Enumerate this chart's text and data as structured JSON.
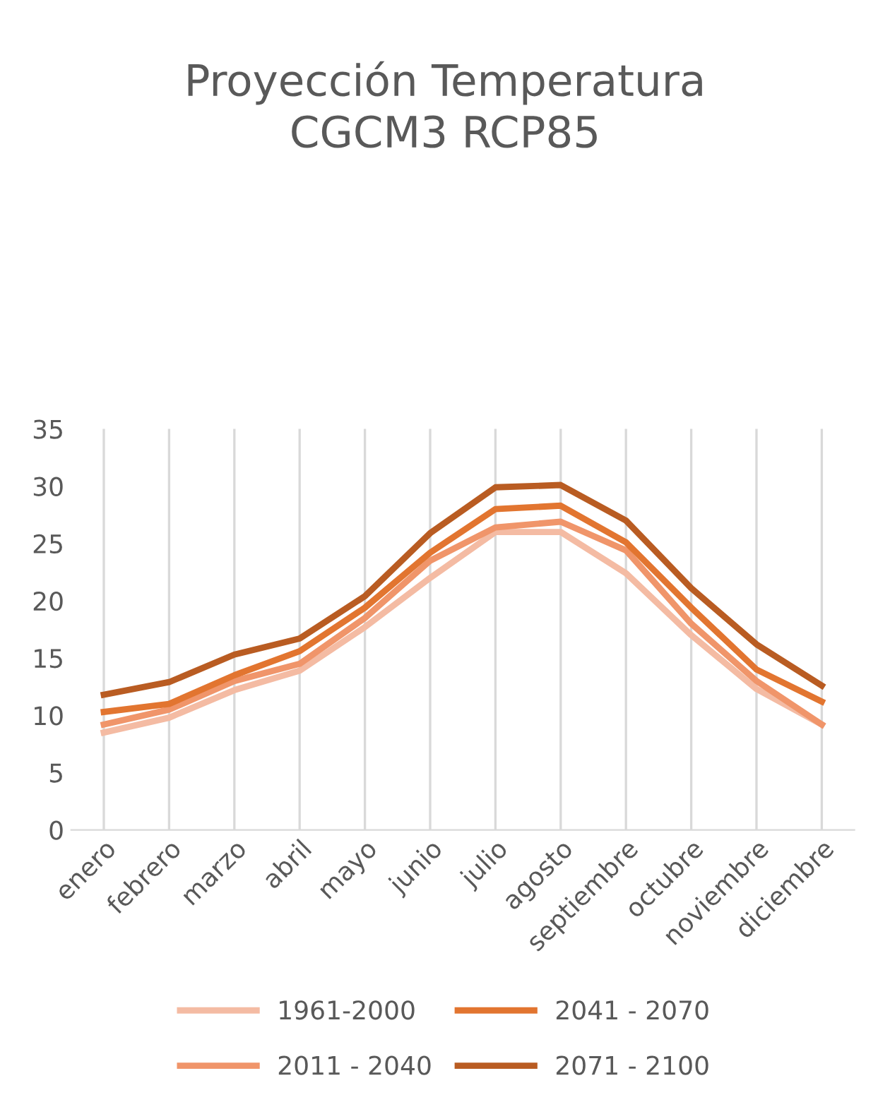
{
  "chart_data": {
    "type": "line",
    "title": "Proyección Temperatura\nCGCM3 RCP85",
    "categories": [
      "enero",
      "febrero",
      "marzo",
      "abril",
      "mayo",
      "junio",
      "julio",
      "agosto",
      "septiembre",
      "octubre",
      "noviembre",
      "diciembre"
    ],
    "series": [
      {
        "name": "1961-2000",
        "color": "#f4bba3",
        "values": [
          8.5,
          9.8,
          12.2,
          13.9,
          17.7,
          22.0,
          26.0,
          26.0,
          22.4,
          17.0,
          12.3,
          9.2
        ]
      },
      {
        "name": "2011 - 2040",
        "color": "#f0956a",
        "values": [
          9.2,
          10.5,
          13.0,
          14.5,
          18.5,
          23.5,
          26.4,
          26.9,
          24.4,
          18.0,
          13.0,
          9.2
        ]
      },
      {
        "name": "2041 - 2070",
        "color": "#e27530",
        "values": [
          10.3,
          11.0,
          13.5,
          15.6,
          19.4,
          24.2,
          28.0,
          28.3,
          25.1,
          19.4,
          14.0,
          11.2
        ]
      },
      {
        "name": "2071 - 2100",
        "color": "#b95c22",
        "values": [
          11.8,
          12.9,
          15.3,
          16.7,
          20.4,
          25.9,
          29.9,
          30.1,
          27.0,
          21.1,
          16.2,
          12.6
        ]
      }
    ],
    "ylim": [
      0,
      35
    ],
    "yticks": [
      0,
      5,
      10,
      15,
      20,
      25,
      30,
      35
    ],
    "grid": "x",
    "legend": "bottom",
    "marker": "none",
    "line_style": "solid"
  }
}
